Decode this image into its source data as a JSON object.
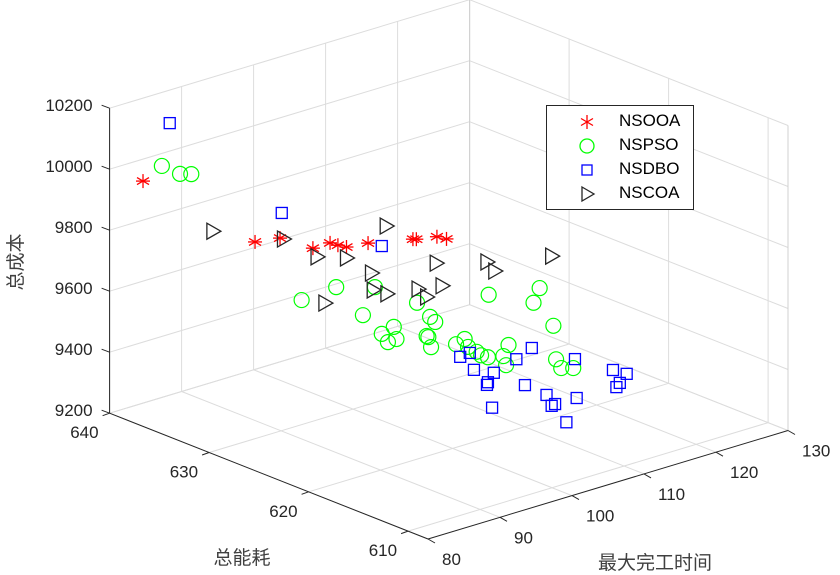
{
  "chart_data": {
    "type": "scatter3d",
    "xlabel": "最大完工时间",
    "ylabel": "总能耗",
    "zlabel": "总成本",
    "xlim": [
      80,
      130
    ],
    "ylim": [
      608,
      640
    ],
    "zlim": [
      9200,
      10200
    ],
    "xticks": [
      "80",
      "90",
      "100",
      "110",
      "120",
      "130"
    ],
    "yticks": [
      "610",
      "620",
      "630",
      "640"
    ],
    "zticks": [
      "9200",
      "9400",
      "9600",
      "9800",
      "10000",
      "10200"
    ],
    "grid": true,
    "legend_position": "top-right",
    "series": [
      {
        "name": "NSOOA",
        "marker": "asterisk",
        "color": "#ff0000",
        "points": [
          [
            81.6,
            637.8,
            9978
          ],
          [
            87.9,
            631.1,
            9820
          ],
          [
            89.3,
            629.6,
            9842
          ],
          [
            91.1,
            627.6,
            9822
          ],
          [
            92.1,
            626.6,
            9845
          ],
          [
            92.5,
            626.1,
            9841
          ],
          [
            93.0,
            625.6,
            9838
          ],
          [
            94.2,
            624.3,
            9859
          ],
          [
            96.7,
            621.6,
            9889
          ],
          [
            96.9,
            621.4,
            9890
          ],
          [
            98.1,
            620.2,
            9905
          ],
          [
            98.6,
            619.6,
            9902
          ]
        ]
      },
      {
        "name": "NSPSO",
        "marker": "circle",
        "color": "#00ff00",
        "points": [
          [
            82.7,
            636.7,
            10034
          ],
          [
            83.7,
            635.6,
            10015
          ],
          [
            84.3,
            634.9,
            10019
          ],
          [
            90.5,
            628.3,
            9647
          ],
          [
            92.4,
            626.2,
            9703
          ],
          [
            93.9,
            624.6,
            9621
          ],
          [
            94.6,
            623.9,
            9717
          ],
          [
            95.0,
            623.5,
            9566
          ],
          [
            95.7,
            622.8,
            9593
          ],
          [
            95.3,
            623.1,
            9542
          ],
          [
            95.8,
            622.6,
            9555
          ],
          [
            97.0,
            621.4,
            9681
          ],
          [
            97.7,
            620.6,
            9640
          ],
          [
            98.0,
            620.3,
            9625
          ],
          [
            97.5,
            620.8,
            9576
          ],
          [
            97.6,
            620.7,
            9573
          ],
          [
            97.7,
            620.5,
            9542
          ],
          [
            99.1,
            619.0,
            9561
          ],
          [
            99.6,
            618.5,
            9581
          ],
          [
            99.8,
            618.3,
            9556
          ],
          [
            100.3,
            617.8,
            9543
          ],
          [
            100.5,
            617.5,
            9534
          ],
          [
            101.0,
            617.1,
            9734
          ],
          [
            103.8,
            614.0,
            9776
          ],
          [
            103.5,
            614.4,
            9725
          ],
          [
            104.6,
            613.2,
            9657
          ],
          [
            100.9,
            617.1,
            9530
          ],
          [
            102.1,
            615.9,
            9577
          ],
          [
            101.8,
            616.2,
            9539
          ],
          [
            101.9,
            616.0,
            9511
          ],
          [
            104.7,
            613.0,
            9549
          ],
          [
            105.0,
            612.7,
            9522
          ],
          [
            105.7,
            612.0,
            9526
          ]
        ]
      },
      {
        "name": "NSDBO",
        "marker": "square",
        "color": "#0000ff",
        "points": [
          [
            83.1,
            636.2,
            10178
          ],
          [
            89.4,
            629.5,
            9925
          ],
          [
            95.0,
            623.5,
            9854
          ],
          [
            99.4,
            618.8,
            9520
          ],
          [
            99.9,
            618.2,
            9537
          ],
          [
            100.2,
            618.0,
            9482
          ],
          [
            101.3,
            616.8,
            9480
          ],
          [
            100.9,
            617.1,
            9448
          ],
          [
            100.9,
            617.2,
            9438
          ],
          [
            101.2,
            616.9,
            9365
          ],
          [
            102.5,
            615.4,
            9534
          ],
          [
            103.4,
            614.5,
            9576
          ],
          [
            103.0,
            614.9,
            9452
          ],
          [
            104.2,
            613.6,
            9428
          ],
          [
            104.5,
            613.3,
            9394
          ],
          [
            104.7,
            613.1,
            9401
          ],
          [
            105.3,
            612.4,
            9346
          ],
          [
            105.9,
            611.8,
            9429
          ],
          [
            105.8,
            611.9,
            9556
          ],
          [
            107.9,
            609.6,
            9535
          ],
          [
            108.7,
            608.8,
            9527
          ],
          [
            108.3,
            609.2,
            9495
          ],
          [
            108.1,
            609.4,
            9480
          ]
        ]
      },
      {
        "name": "NSCOA",
        "marker": "triangle-right",
        "color": "#262626",
        "points": [
          [
            85.5,
            633.6,
            9840
          ],
          [
            89.5,
            629.4,
            9840
          ],
          [
            91.4,
            627.4,
            9794
          ],
          [
            93.0,
            625.6,
            9802
          ],
          [
            91.8,
            626.9,
            9646
          ],
          [
            95.2,
            623.2,
            9922
          ],
          [
            94.4,
            624.1,
            9762
          ],
          [
            94.5,
            624.0,
            9707
          ],
          [
            95.3,
            623.2,
            9699
          ],
          [
            97.0,
            621.3,
            9727
          ],
          [
            97.5,
            620.8,
            9704
          ],
          [
            98.0,
            620.2,
            9819
          ],
          [
            98.4,
            619.9,
            9746
          ],
          [
            100.9,
            617.2,
            9841
          ],
          [
            101.3,
            616.7,
            9815
          ],
          [
            104.5,
            613.3,
            9885
          ]
        ]
      }
    ]
  }
}
